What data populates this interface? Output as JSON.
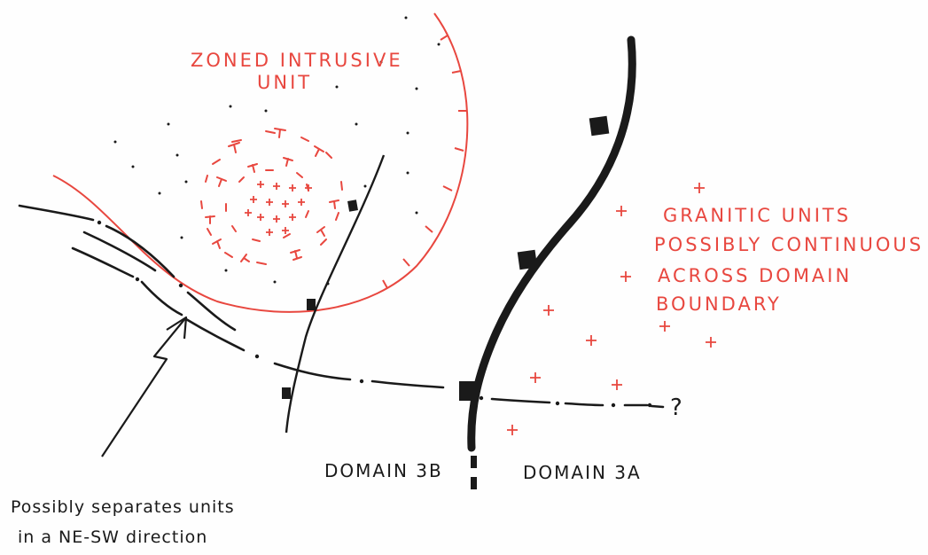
{
  "labels": {
    "zoned_line1": "ZONED INTRUSIVE",
    "zoned_line2": "UNIT",
    "granitic_line1": "GRANITIC UNITS",
    "granitic_line2": "POSSIBLY CONTINUOUS",
    "granitic_line3": "ACROSS DOMAIN",
    "granitic_line4": "BOUNDARY",
    "domain_3b": "DOMAIN 3B",
    "domain_3a": "DOMAIN 3A",
    "question_mark": "?",
    "note_line1": "Possibly separates units",
    "note_line2": "in a NE-SW direction"
  },
  "colors": {
    "red_ink": "#e8473f",
    "black_ink": "#1a1a1a"
  }
}
